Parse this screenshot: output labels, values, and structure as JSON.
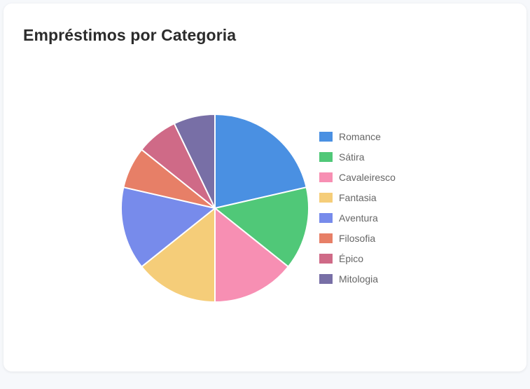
{
  "card": {
    "title": "Empréstimos por Categoria"
  },
  "chart_data": {
    "type": "pie",
    "categories": [
      "Romance",
      "Sátira",
      "Cavaleiresco",
      "Fantasia",
      "Aventura",
      "Filosofia",
      "Épico",
      "Mitologia"
    ],
    "values": [
      3,
      2,
      2,
      2,
      2,
      1,
      1,
      1
    ],
    "colors": [
      "#4a90e2",
      "#50c878",
      "#f78fb3",
      "#f5cd79",
      "#778beb",
      "#e77f67",
      "#cf6a87",
      "#786fa6"
    ],
    "title": "",
    "legend_position": "right"
  }
}
